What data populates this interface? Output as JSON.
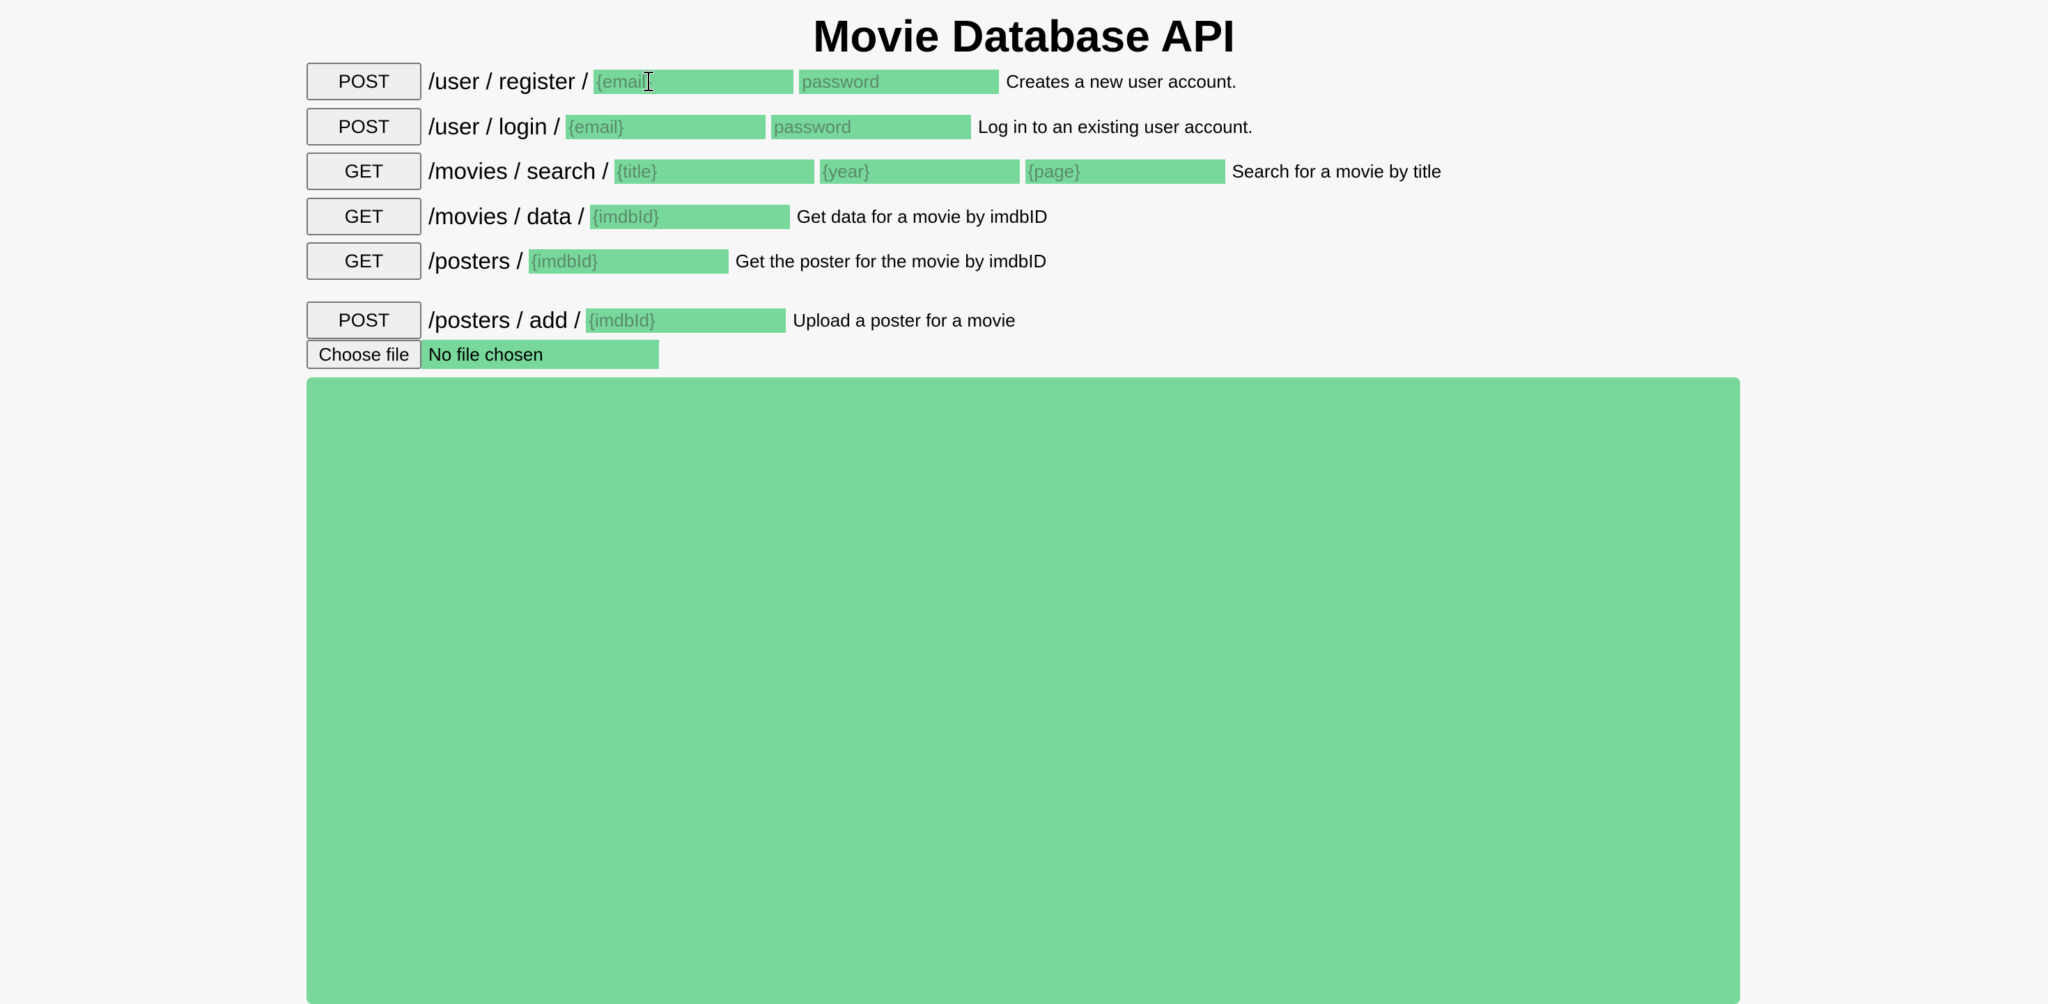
{
  "page": {
    "title": "Movie Database API"
  },
  "endpoints": [
    {
      "method": "POST",
      "path": "/user / register /",
      "fields": [
        "{email}",
        "password"
      ],
      "description": "Creates a new user account."
    },
    {
      "method": "POST",
      "path": "/user / login /",
      "fields": [
        "{email}",
        "password"
      ],
      "description": "Log in to an existing user account."
    },
    {
      "method": "GET",
      "path": "/movies / search /",
      "fields": [
        "{title}",
        "{year}",
        "{page}"
      ],
      "description": "Search for a movie by title"
    },
    {
      "method": "GET",
      "path": "/movies / data /",
      "fields": [
        "{imdbId}"
      ],
      "description": "Get data for a movie by imdbID"
    },
    {
      "method": "GET",
      "path": "/posters /",
      "fields": [
        "{imdbId}"
      ],
      "description": "Get the poster for the movie by imdbID"
    },
    {
      "method": "POST",
      "path": "/posters / add /",
      "fields": [
        "{imdbId}"
      ],
      "description": "Upload a poster for a movie"
    }
  ],
  "file_upload": {
    "button_label": "Choose file",
    "status": "No file chosen"
  },
  "colors": {
    "field_background": "#78d89b",
    "page_background": "#f7f7f7",
    "button_background": "#efefef"
  },
  "cursor": {
    "icon": "text-cursor-icon"
  }
}
